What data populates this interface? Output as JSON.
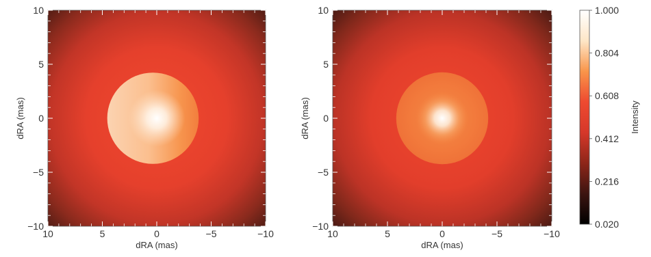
{
  "chart_data": [
    {
      "type": "heatmap",
      "title": "",
      "xlabel": "dRA (mas)",
      "ylabel": "dRA (mas)",
      "xlim": [
        10,
        -10
      ],
      "ylim": [
        -10,
        10
      ],
      "xticks": [
        10,
        5,
        0,
        -5,
        -10
      ],
      "yticks": [
        -10,
        -5,
        0,
        5,
        10
      ],
      "xtick_labels": [
        "10",
        "5",
        "0",
        "−5",
        "−10"
      ],
      "ytick_labels": [
        "−10",
        "−5",
        "0",
        "5",
        "10"
      ],
      "features": {
        "disk_center": [
          0,
          0
        ],
        "disk_radius": 4.2,
        "bright_spot": [
          0,
          0
        ],
        "disk_brightness": "brighter on left (east)",
        "background": "red halo fading to dark at corners"
      }
    },
    {
      "type": "heatmap",
      "title": "",
      "xlabel": "dRA (mas)",
      "ylabel": "dRA (mas)",
      "xlim": [
        10,
        -10
      ],
      "ylim": [
        -10,
        10
      ],
      "xticks": [
        10,
        5,
        0,
        -5,
        -10
      ],
      "yticks": [
        -10,
        -5,
        0,
        5,
        10
      ],
      "xtick_labels": [
        "10",
        "5",
        "0",
        "−5",
        "−10"
      ],
      "ytick_labels": [
        "−10",
        "−5",
        "0",
        "5",
        "10"
      ],
      "features": {
        "disk_center": [
          0,
          0
        ],
        "disk_radius": 4.2,
        "bright_spot": [
          0,
          0
        ],
        "disk_brightness": "uniform orange disk",
        "background": "red halo fading to dark at corners"
      }
    }
  ],
  "colorbar": {
    "label": "Intensity",
    "ticks": [
      "1.000",
      "0.804",
      "0.608",
      "0.412",
      "0.216",
      "0.020"
    ],
    "range": [
      0.02,
      1.0
    ],
    "colors": [
      "#000000",
      "#3d1511",
      "#8e2619",
      "#d6382a",
      "#ee4a30",
      "#f9954a",
      "#fde6c7",
      "#ffffff"
    ]
  }
}
